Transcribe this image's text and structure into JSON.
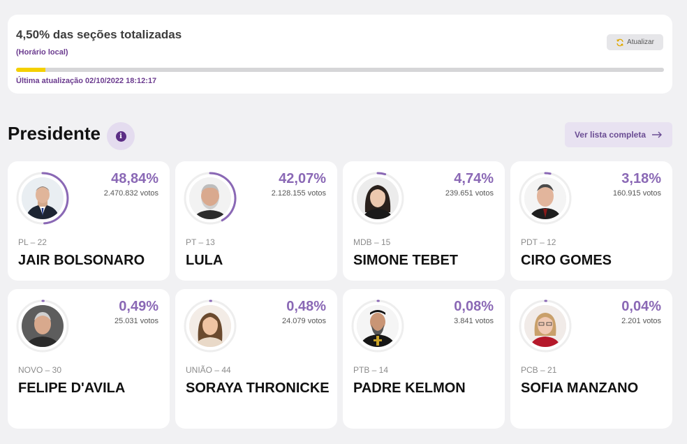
{
  "status": {
    "title": "4,50% das seções totalizadas",
    "subtitle": "(Horário local)",
    "refresh_label": "Atualizar",
    "progress_percent": 4.5,
    "updated": "Última atualização 02/10/2022 18:12:17",
    "progress_color": "#f4d000"
  },
  "section": {
    "title": "Presidente",
    "list_button": "Ver lista completa"
  },
  "colors": {
    "accent": "#8a68b5",
    "brand": "#5b2d85"
  },
  "candidates": [
    {
      "pct": "48,84%",
      "pct_value": 48.84,
      "votes": "2.470.832 votos",
      "party": "PL – 22",
      "name": "JAIR BOLSONARO"
    },
    {
      "pct": "42,07%",
      "pct_value": 42.07,
      "votes": "2.128.155 votos",
      "party": "PT – 13",
      "name": "LULA"
    },
    {
      "pct": "4,74%",
      "pct_value": 4.74,
      "votes": "239.651 votos",
      "party": "MDB – 15",
      "name": "SIMONE TEBET"
    },
    {
      "pct": "3,18%",
      "pct_value": 3.18,
      "votes": "160.915 votos",
      "party": "PDT – 12",
      "name": "CIRO GOMES"
    },
    {
      "pct": "0,49%",
      "pct_value": 0.49,
      "votes": "25.031 votos",
      "party": "NOVO – 30",
      "name": "FELIPE D'AVILA"
    },
    {
      "pct": "0,48%",
      "pct_value": 0.48,
      "votes": "24.079 votos",
      "party": "UNIÃO – 44",
      "name": "SORAYA THRONICKE"
    },
    {
      "pct": "0,08%",
      "pct_value": 0.08,
      "votes": "3.841 votos",
      "party": "PTB – 14",
      "name": "PADRE KELMON"
    },
    {
      "pct": "0,04%",
      "pct_value": 0.04,
      "votes": "2.201 votos",
      "party": "PCB – 21",
      "name": "SOFIA MANZANO"
    }
  ]
}
